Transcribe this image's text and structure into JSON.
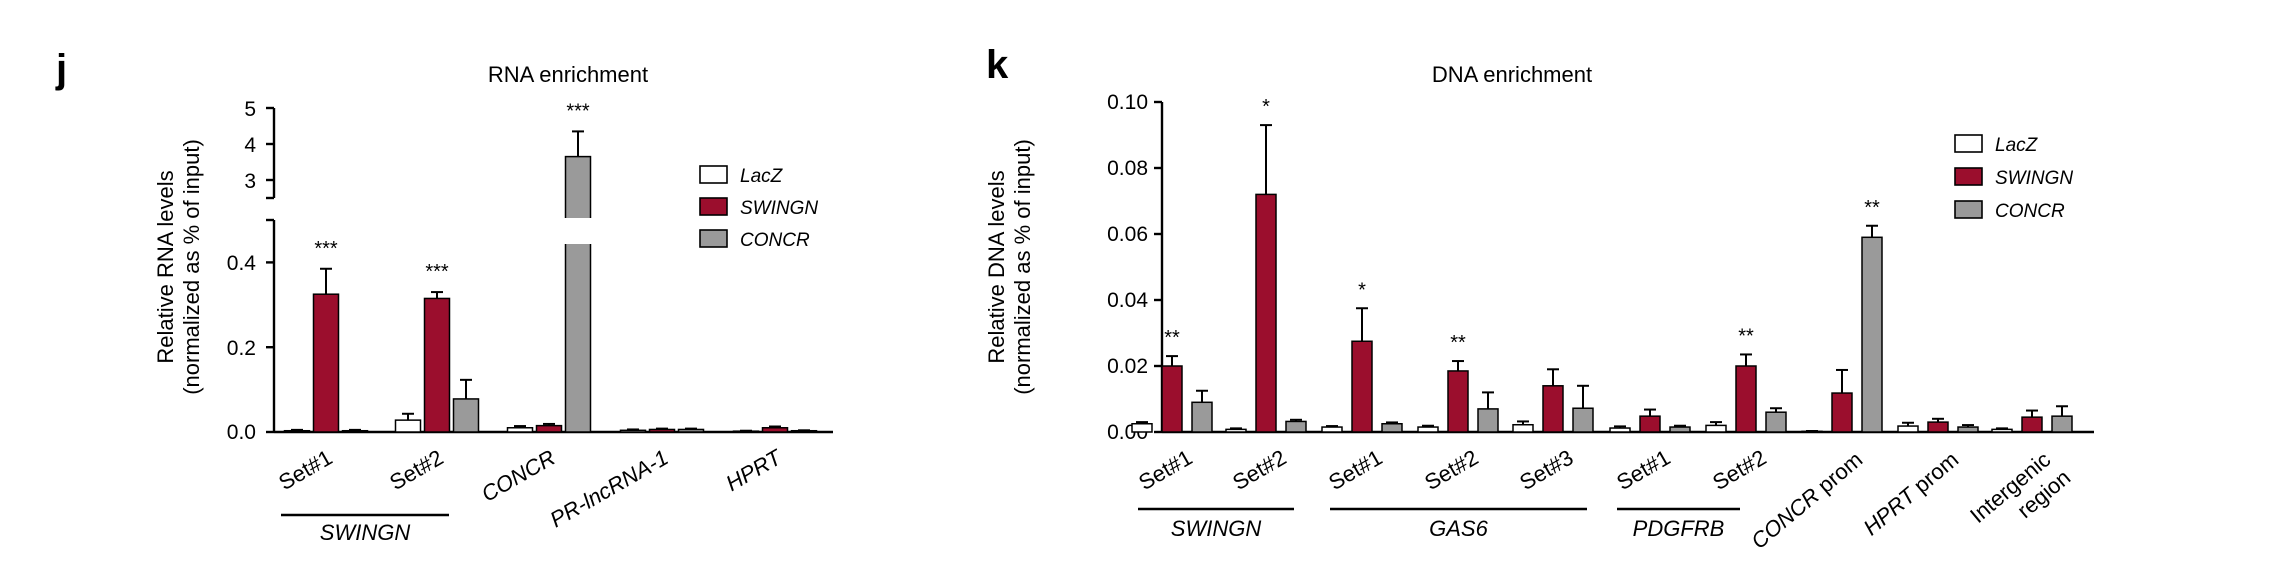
{
  "colors": {
    "LacZ": "#ffffff",
    "SWINGN": "#9b0e2d",
    "CONCR": "#9a9a9a"
  },
  "panel_j": {
    "label": "j"
  },
  "panel_k": {
    "label": "k"
  },
  "chart_data": [
    {
      "type": "bar",
      "panel": "j",
      "title": "RNA enrichment",
      "ylabel_line1": "Relative RNA levels",
      "ylabel_line2": "(normalized as % of input)",
      "ylim": [
        0,
        5
      ],
      "axis_break": [
        0.5,
        2.5
      ],
      "yticks_lower": [
        "0.0",
        "0.2",
        "0.4"
      ],
      "yticks_upper": [
        "3",
        "4",
        "5"
      ],
      "legend": [
        "LacZ",
        "SWINGN",
        "CONCR"
      ],
      "legend_position": "top-right",
      "categories": [
        "Set#1",
        "Set#2",
        "CONCR",
        "PR-lncRNA-1",
        "HPRT"
      ],
      "italic_categories": [
        "CONCR",
        "PR-lncRNA-1",
        "HPRT"
      ],
      "groups": [
        {
          "label": "SWINGN",
          "span": [
            "Set#1",
            "Set#2"
          ]
        }
      ],
      "series": [
        {
          "name": "LacZ",
          "values": [
            0.003,
            0.028,
            0.01,
            0.004,
            0.002
          ],
          "errors": [
            0.002,
            0.015,
            0.004,
            0.002,
            0.001
          ]
        },
        {
          "name": "SWINGN",
          "values": [
            0.325,
            0.315,
            0.015,
            0.006,
            0.01
          ],
          "errors": [
            0.06,
            0.015,
            0.004,
            0.002,
            0.003
          ]
        },
        {
          "name": "CONCR",
          "values": [
            0.003,
            0.078,
            3.65,
            0.006,
            0.003
          ],
          "errors": [
            0.002,
            0.045,
            0.7,
            0.002,
            0.001
          ]
        }
      ],
      "annotations": [
        {
          "category": "Set#1",
          "series": "SWINGN",
          "text": "***"
        },
        {
          "category": "Set#2",
          "series": "SWINGN",
          "text": "***"
        },
        {
          "category": "CONCR",
          "series": "CONCR",
          "text": "***"
        }
      ]
    },
    {
      "type": "bar",
      "panel": "k",
      "title": "DNA enrichment",
      "ylabel_line1": "Relative DNA levels",
      "ylabel_line2": "(normalized as % of input)",
      "ylim": [
        0,
        0.1
      ],
      "yticks": [
        "0.00",
        "0.02",
        "0.04",
        "0.06",
        "0.08",
        "0.10"
      ],
      "legend": [
        "LacZ",
        "SWINGN",
        "CONCR"
      ],
      "legend_position": "top-right",
      "categories": [
        "Set#1",
        "Set#2",
        "Set#1",
        "Set#2",
        "Set#3",
        "Set#1",
        "Set#2",
        "CONCR prom",
        "HPRT prom",
        "Intergenic region"
      ],
      "italic_categories": [],
      "groups": [
        {
          "label": "SWINGN",
          "span": [
            0,
            1
          ]
        },
        {
          "label": "GAS6",
          "span": [
            2,
            4
          ]
        },
        {
          "label": "PDGFRB",
          "span": [
            5,
            6
          ]
        }
      ],
      "series": [
        {
          "name": "LacZ",
          "values": [
            0.0025,
            0.0008,
            0.0015,
            0.0015,
            0.0022,
            0.0012,
            0.002,
            0.0002,
            0.0018,
            0.0008
          ],
          "errors": [
            0.0005,
            0.0003,
            0.0003,
            0.0004,
            0.001,
            0.0005,
            0.001,
            0.0001,
            0.001,
            0.0003
          ]
        },
        {
          "name": "SWINGN",
          "values": [
            0.02,
            0.072,
            0.0275,
            0.0185,
            0.014,
            0.0048,
            0.02,
            0.0118,
            0.003,
            0.0045
          ],
          "errors": [
            0.003,
            0.021,
            0.01,
            0.003,
            0.005,
            0.002,
            0.0035,
            0.007,
            0.001,
            0.002
          ]
        },
        {
          "name": "CONCR",
          "values": [
            0.009,
            0.0032,
            0.0025,
            0.007,
            0.0072,
            0.0015,
            0.006,
            0.059,
            0.0015,
            0.0048
          ],
          "errors": [
            0.0035,
            0.0005,
            0.0004,
            0.005,
            0.0068,
            0.0004,
            0.0012,
            0.0035,
            0.0006,
            0.003
          ]
        }
      ],
      "annotations": [
        {
          "index": 0,
          "series": "SWINGN",
          "text": "**"
        },
        {
          "index": 1,
          "series": "SWINGN",
          "text": "*"
        },
        {
          "index": 2,
          "series": "SWINGN",
          "text": "*"
        },
        {
          "index": 3,
          "series": "SWINGN",
          "text": "**"
        },
        {
          "index": 6,
          "series": "SWINGN",
          "text": "**"
        },
        {
          "index": 7,
          "series": "CONCR",
          "text": "**"
        }
      ]
    }
  ]
}
